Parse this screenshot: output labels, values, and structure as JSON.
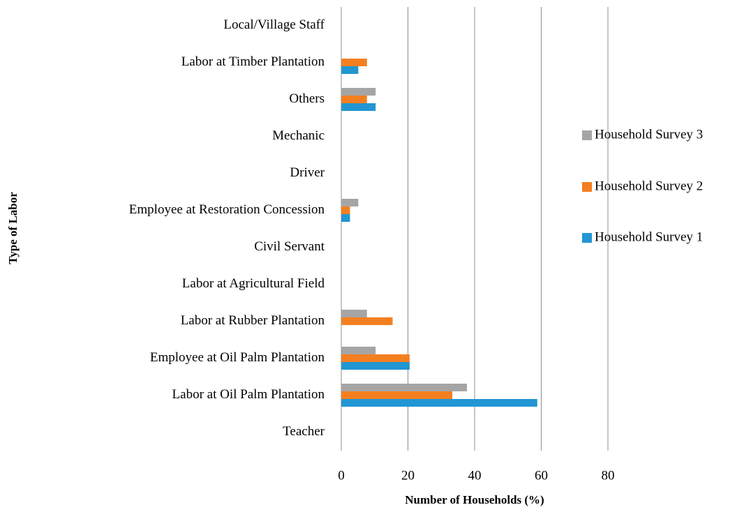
{
  "chart_data": {
    "type": "bar",
    "orientation": "horizontal",
    "xlabel": "Number of Households (%)",
    "ylabel": "Type of Labor",
    "categories": [
      "Local/Village Staff",
      "Labor at Timber Plantation",
      "Others",
      "Mechanic",
      "Driver",
      "Employee at Restoration Concession",
      "Civil Servant",
      "Labor at Agricultural Field",
      "Labor at Rubber Plantation",
      "Employee at Oil Palm Plantation",
      "Labor at Oil Palm Plantation",
      "Teacher"
    ],
    "series": [
      {
        "name": "Household Survey 1",
        "color": "#2196d3",
        "values": [
          0,
          5.1,
          10.3,
          0,
          0,
          2.6,
          0,
          0,
          0,
          20.5,
          58.8,
          0
        ]
      },
      {
        "name": "Household Survey 2",
        "color": "#f47f20",
        "values": [
          0,
          7.7,
          7.7,
          0,
          0,
          2.6,
          0,
          0,
          15.4,
          20.5,
          33.3,
          0
        ]
      },
      {
        "name": "Household Survey 3",
        "color": "#a5a5a5",
        "values": [
          0,
          0,
          10.3,
          0,
          0,
          5.1,
          0,
          0,
          7.7,
          10.3,
          37.7,
          0
        ]
      }
    ],
    "xlim": [
      0,
      80
    ],
    "xticks": [
      0,
      20,
      40,
      60,
      80
    ],
    "grid": true,
    "legend": "right"
  }
}
